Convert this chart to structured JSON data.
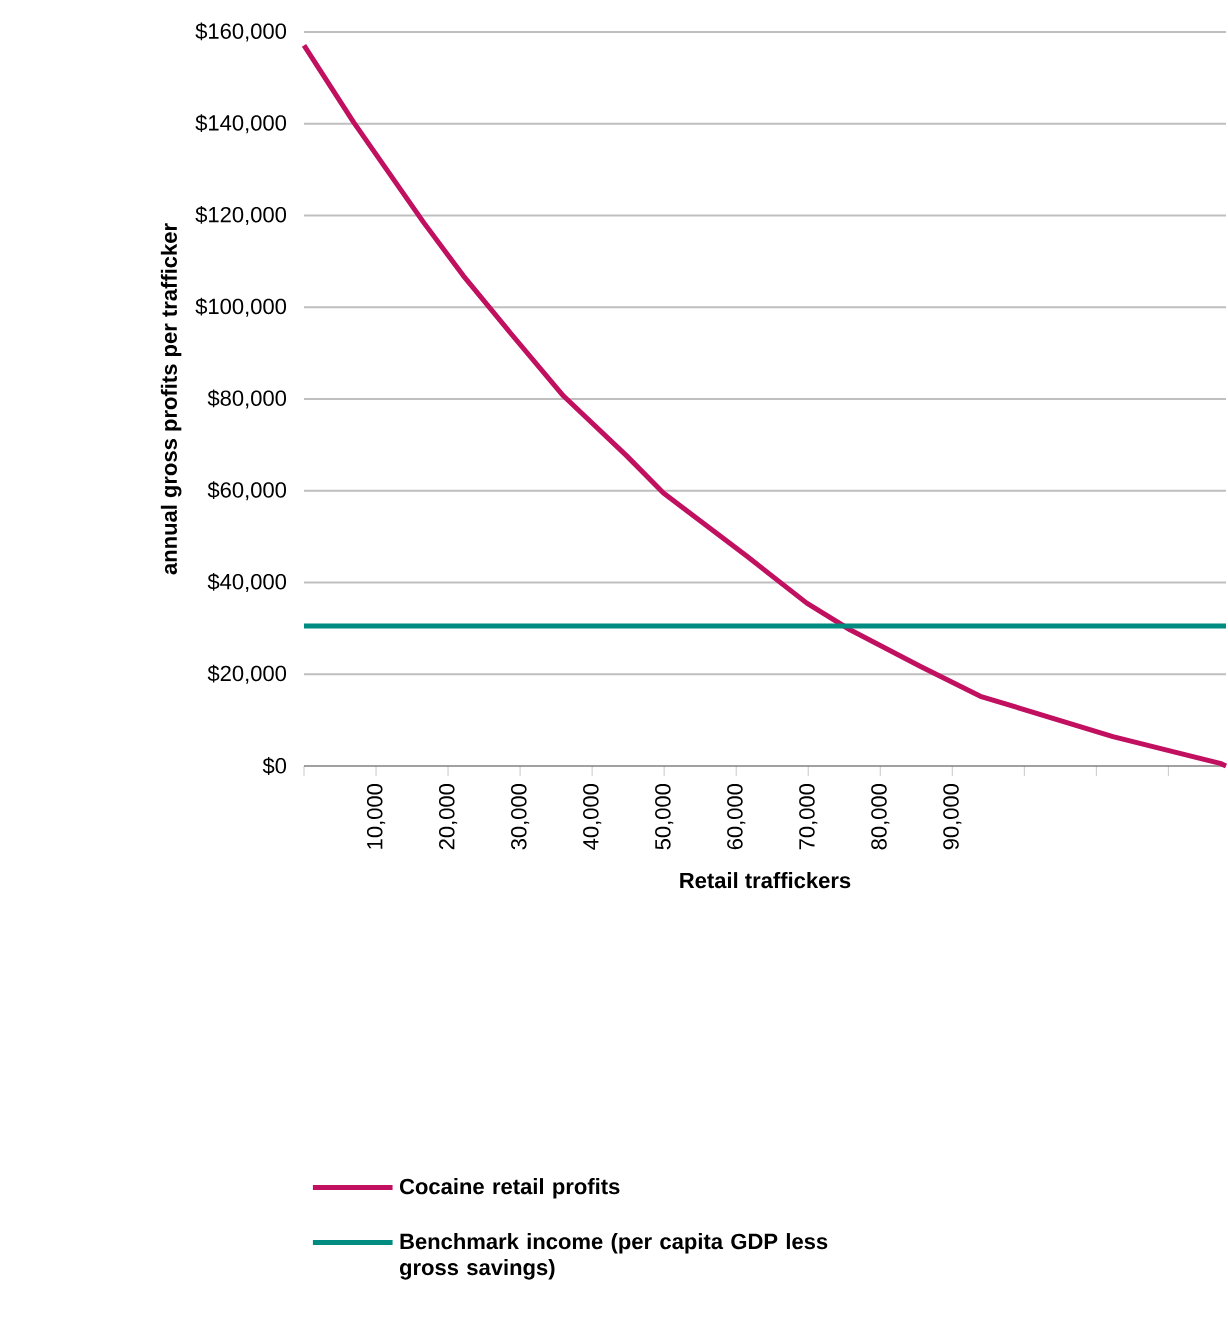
{
  "chart_data": {
    "type": "line",
    "xlabel": "Retail traffickers",
    "ylabel": "annual gross profits per trafficker",
    "xlim": [
      0,
      128000
    ],
    "xticks": [
      {
        "value": 0,
        "label": null
      },
      {
        "value": 10000,
        "label": "10,000"
      },
      {
        "value": 20000,
        "label": "20,000"
      },
      {
        "value": 30000,
        "label": "30,000"
      },
      {
        "value": 40000,
        "label": "40,000"
      },
      {
        "value": 50000,
        "label": "50,000"
      },
      {
        "value": 60000,
        "label": "60,000"
      },
      {
        "value": 70000,
        "label": "70,000"
      },
      {
        "value": 80000,
        "label": "80,000"
      },
      {
        "value": 90000,
        "label": "90,000"
      },
      {
        "value": 100000,
        "label": null
      },
      {
        "value": 110000,
        "label": null
      },
      {
        "value": 120000,
        "label": null
      }
    ],
    "ylim": [
      0,
      160000
    ],
    "yticks": [
      {
        "value": 0,
        "label": "$0"
      },
      {
        "value": 20000,
        "label": "$20,000"
      },
      {
        "value": 40000,
        "label": "$40,000"
      },
      {
        "value": 60000,
        "label": "$60,000"
      },
      {
        "value": 80000,
        "label": "$80,000"
      },
      {
        "value": 100000,
        "label": "$100,000"
      },
      {
        "value": 120000,
        "label": "$120,000"
      },
      {
        "value": 140000,
        "label": "$140,000"
      },
      {
        "value": 160000,
        "label": "$160,000"
      }
    ],
    "grid": "y",
    "legend": "bottom",
    "marker": "none",
    "line_style": "solid",
    "series": [
      {
        "name": "Cocaine retail profits",
        "color": "#c0105f",
        "x": [
          0,
          6900,
          16600,
          22100,
          28600,
          36000,
          44800,
          49900,
          61500,
          69800,
          75800,
          85600,
          93900,
          103100,
          112300,
          121600,
          127200,
          128000
        ],
        "values": [
          157100,
          140300,
          118500,
          106900,
          94500,
          80700,
          67600,
          59500,
          45700,
          35500,
          29700,
          21700,
          15200,
          10800,
          6400,
          2750,
          570,
          0
        ]
      },
      {
        "name": "Benchmark income (per capita GDP less gross savings)",
        "color": "#008c80",
        "x": [
          0,
          128000
        ],
        "values": [
          30500,
          30500
        ]
      }
    ]
  }
}
